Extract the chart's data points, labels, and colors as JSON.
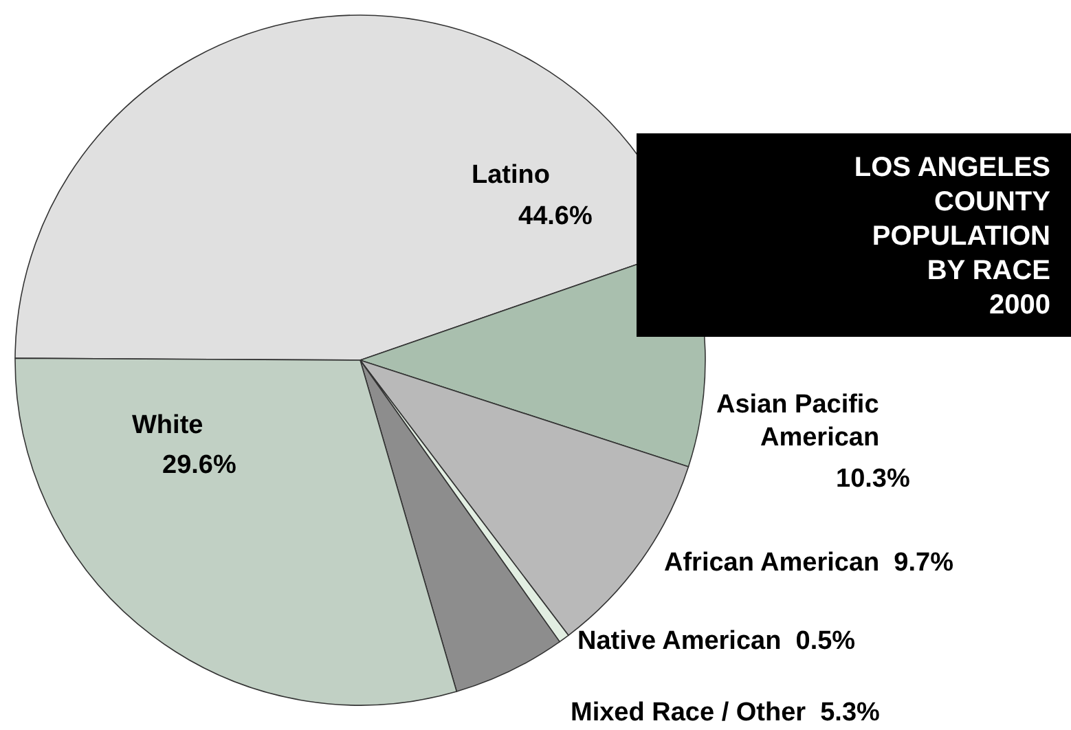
{
  "chart_data": {
    "type": "pie",
    "title": "LOS ANGELES COUNTY POPULATION BY RACE 2000",
    "categories": [
      "Latino",
      "Asian Pacific American",
      "African American",
      "Native American",
      "Mixed Race / Other",
      "White"
    ],
    "values": [
      44.6,
      10.3,
      9.7,
      0.5,
      5.3,
      29.6
    ],
    "value_labels": [
      "44.6%",
      "10.3%",
      "9.7%",
      "0.5%",
      "5.3%",
      "29.6%"
    ],
    "colors": [
      "#e0e0e0",
      "#a9bfae",
      "#b9b9b9",
      "#e2eee2",
      "#8d8d8d",
      "#c1d0c4"
    ]
  }
}
